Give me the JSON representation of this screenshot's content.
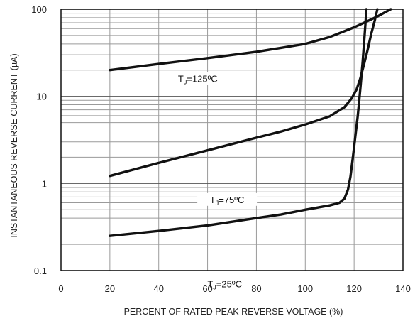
{
  "chart_data": {
    "type": "line",
    "xlabel": "PERCENT OF RATED PEAK REVERSE VOLTAGE (%)",
    "ylabel": "INSTANTANEOUS REVERSE CURRENT (µA)",
    "xlim": [
      0,
      140
    ],
    "ylim": [
      0.1,
      100
    ],
    "yscale": "log",
    "grid": true,
    "x_ticks": [
      0,
      20,
      40,
      60,
      80,
      100,
      120,
      140
    ],
    "y_ticks": [
      {
        "value": 0.1,
        "label": "0.1"
      },
      {
        "value": 1,
        "label": "1"
      },
      {
        "value": 10,
        "label": "10"
      },
      {
        "value": 100,
        "label": "100"
      }
    ],
    "series": [
      {
        "label": "TJ=125ºC",
        "label_main": "T",
        "label_sub": "J",
        "label_rest": "=125ºC",
        "points": [
          [
            20,
            20
          ],
          [
            40,
            23.5
          ],
          [
            60,
            27.5
          ],
          [
            80,
            32.5
          ],
          [
            90,
            36
          ],
          [
            100,
            40
          ],
          [
            110,
            48
          ],
          [
            120,
            62
          ],
          [
            125,
            72
          ],
          [
            130,
            84
          ],
          [
            135,
            100
          ]
        ]
      },
      {
        "label": "TJ=75ºC",
        "label_main": "T",
        "label_sub": "J",
        "label_rest": "=75ºC",
        "points": [
          [
            20,
            1.22
          ],
          [
            40,
            1.72
          ],
          [
            60,
            2.4
          ],
          [
            80,
            3.35
          ],
          [
            90,
            3.95
          ],
          [
            100,
            4.75
          ],
          [
            110,
            5.9
          ],
          [
            116,
            7.5
          ],
          [
            119,
            9.5
          ],
          [
            121,
            12
          ],
          [
            122.5,
            16
          ],
          [
            124,
            23
          ],
          [
            125.5,
            34
          ],
          [
            127,
            52
          ],
          [
            128.5,
            75
          ],
          [
            129.5,
            100
          ]
        ]
      },
      {
        "label": "TJ=25ºC",
        "label_main": "T",
        "label_sub": "J",
        "label_rest": "=25ºC",
        "points": [
          [
            20,
            0.25
          ],
          [
            40,
            0.285
          ],
          [
            60,
            0.33
          ],
          [
            80,
            0.4
          ],
          [
            90,
            0.44
          ],
          [
            100,
            0.5
          ],
          [
            110,
            0.56
          ],
          [
            114,
            0.6
          ],
          [
            116,
            0.67
          ],
          [
            117.5,
            0.85
          ],
          [
            118.5,
            1.2
          ],
          [
            119.5,
            2.0
          ],
          [
            120.5,
            3.5
          ],
          [
            121.5,
            6
          ],
          [
            122.5,
            12
          ],
          [
            123.5,
            25
          ],
          [
            124.3,
            50
          ],
          [
            124.8,
            80
          ],
          [
            125,
            100
          ]
        ]
      }
    ]
  }
}
